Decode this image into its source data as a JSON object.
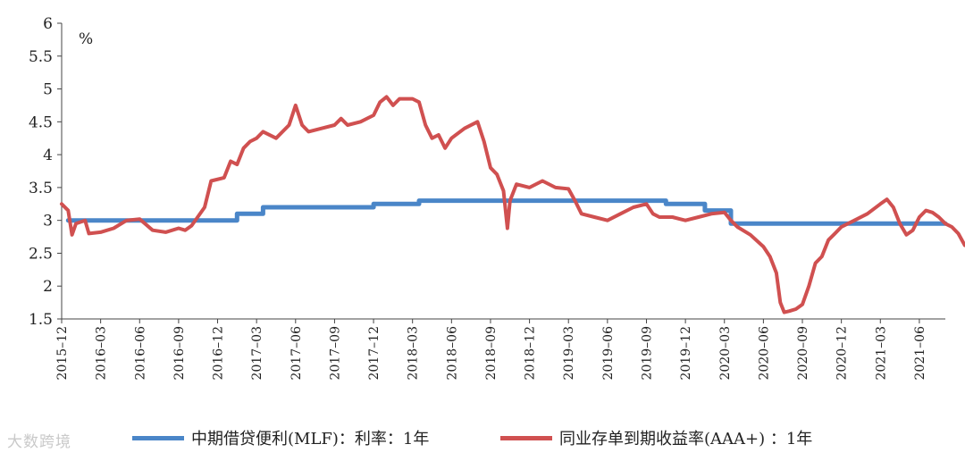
{
  "watermark": "大数跨境",
  "chart_data": {
    "type": "line",
    "unit_label": "%",
    "ylim": [
      1.5,
      6
    ],
    "yticks": [
      "1.5",
      "2",
      "2.5",
      "3",
      "3.5",
      "4",
      "4.5",
      "5",
      "5.5",
      "6"
    ],
    "xticks": [
      "2015–12",
      "2016–03",
      "2016–06",
      "2016–09",
      "2016–12",
      "2017–03",
      "2017–06",
      "2017–09",
      "2017–12",
      "2018–03",
      "2018–06",
      "2018–09",
      "2018–12",
      "2019–03",
      "2019–06",
      "2019–09",
      "2019–12",
      "2020–03",
      "2020–06",
      "2020–09",
      "2020–12",
      "2021–03",
      "2021–06"
    ],
    "x_range_months": [
      0,
      68
    ],
    "grid": false,
    "legend_position": "bottom",
    "series": [
      {
        "name": "中期借贷便利(MLF)：利率：1年",
        "color": "#4a86c8",
        "step": true,
        "points": [
          [
            0.5,
            3.0
          ],
          [
            13,
            3.0
          ],
          [
            13.5,
            3.1
          ],
          [
            15.5,
            3.2
          ],
          [
            24,
            3.25
          ],
          [
            27.5,
            3.3
          ],
          [
            46.5,
            3.25
          ],
          [
            49.5,
            3.15
          ],
          [
            51.5,
            2.95
          ],
          [
            68,
            2.95
          ]
        ]
      },
      {
        "name": "同业存单到期收益率(AAA+) ：1年",
        "color": "#d05050",
        "points": [
          [
            0,
            3.25
          ],
          [
            0.5,
            3.15
          ],
          [
            0.8,
            2.78
          ],
          [
            1.1,
            2.95
          ],
          [
            1.8,
            3.0
          ],
          [
            2.1,
            2.8
          ],
          [
            3,
            2.82
          ],
          [
            4,
            2.88
          ],
          [
            5,
            3.0
          ],
          [
            6,
            3.02
          ],
          [
            7,
            2.85
          ],
          [
            8,
            2.82
          ],
          [
            9,
            2.88
          ],
          [
            9.5,
            2.85
          ],
          [
            10,
            2.92
          ],
          [
            11,
            3.2
          ],
          [
            11.5,
            3.6
          ],
          [
            12.5,
            3.65
          ],
          [
            13,
            3.9
          ],
          [
            13.5,
            3.85
          ],
          [
            14,
            4.1
          ],
          [
            14.5,
            4.2
          ],
          [
            15,
            4.25
          ],
          [
            15.5,
            4.35
          ],
          [
            16.5,
            4.25
          ],
          [
            17.5,
            4.45
          ],
          [
            18,
            4.75
          ],
          [
            18.5,
            4.45
          ],
          [
            19,
            4.35
          ],
          [
            20,
            4.4
          ],
          [
            21,
            4.45
          ],
          [
            21.5,
            4.55
          ],
          [
            22,
            4.45
          ],
          [
            23,
            4.5
          ],
          [
            24,
            4.6
          ],
          [
            24.5,
            4.8
          ],
          [
            25,
            4.88
          ],
          [
            25.5,
            4.75
          ],
          [
            26,
            4.85
          ],
          [
            27,
            4.85
          ],
          [
            27.5,
            4.8
          ],
          [
            28,
            4.45
          ],
          [
            28.5,
            4.25
          ],
          [
            29,
            4.3
          ],
          [
            29.5,
            4.1
          ],
          [
            30,
            4.25
          ],
          [
            31,
            4.4
          ],
          [
            32,
            4.5
          ],
          [
            32.5,
            4.2
          ],
          [
            33,
            3.8
          ],
          [
            33.5,
            3.7
          ],
          [
            34,
            3.45
          ],
          [
            34.3,
            2.88
          ],
          [
            34.5,
            3.3
          ],
          [
            35,
            3.55
          ],
          [
            36,
            3.5
          ],
          [
            37,
            3.6
          ],
          [
            38,
            3.5
          ],
          [
            39,
            3.48
          ],
          [
            39.5,
            3.3
          ],
          [
            40,
            3.1
          ],
          [
            41,
            3.05
          ],
          [
            42,
            3.0
          ],
          [
            43,
            3.1
          ],
          [
            44,
            3.2
          ],
          [
            45,
            3.25
          ],
          [
            45.5,
            3.1
          ],
          [
            46,
            3.05
          ],
          [
            47,
            3.05
          ],
          [
            48,
            3.0
          ],
          [
            49,
            3.05
          ],
          [
            50,
            3.1
          ],
          [
            51,
            3.12
          ],
          [
            51.5,
            3.0
          ],
          [
            52,
            2.9
          ],
          [
            53,
            2.78
          ],
          [
            54,
            2.6
          ],
          [
            54.5,
            2.45
          ],
          [
            55,
            2.2
          ],
          [
            55.3,
            1.75
          ],
          [
            55.6,
            1.6
          ],
          [
            56,
            1.62
          ],
          [
            56.5,
            1.65
          ],
          [
            57,
            1.72
          ],
          [
            57.5,
            2.0
          ],
          [
            58,
            2.35
          ],
          [
            58.5,
            2.45
          ],
          [
            59,
            2.7
          ],
          [
            59.5,
            2.8
          ],
          [
            60,
            2.9
          ],
          [
            61,
            3.0
          ],
          [
            62,
            3.1
          ],
          [
            63,
            3.25
          ],
          [
            63.5,
            3.32
          ],
          [
            64,
            3.2
          ],
          [
            64.5,
            2.95
          ],
          [
            65,
            2.78
          ],
          [
            65.5,
            2.85
          ],
          [
            66,
            3.05
          ],
          [
            66.5,
            3.15
          ],
          [
            67,
            3.12
          ],
          [
            67.5,
            3.05
          ],
          [
            68,
            2.95
          ],
          [
            68.5,
            2.9
          ],
          [
            69,
            2.8
          ],
          [
            69.5,
            2.62
          ],
          [
            70,
            2.65
          ]
        ]
      }
    ]
  }
}
